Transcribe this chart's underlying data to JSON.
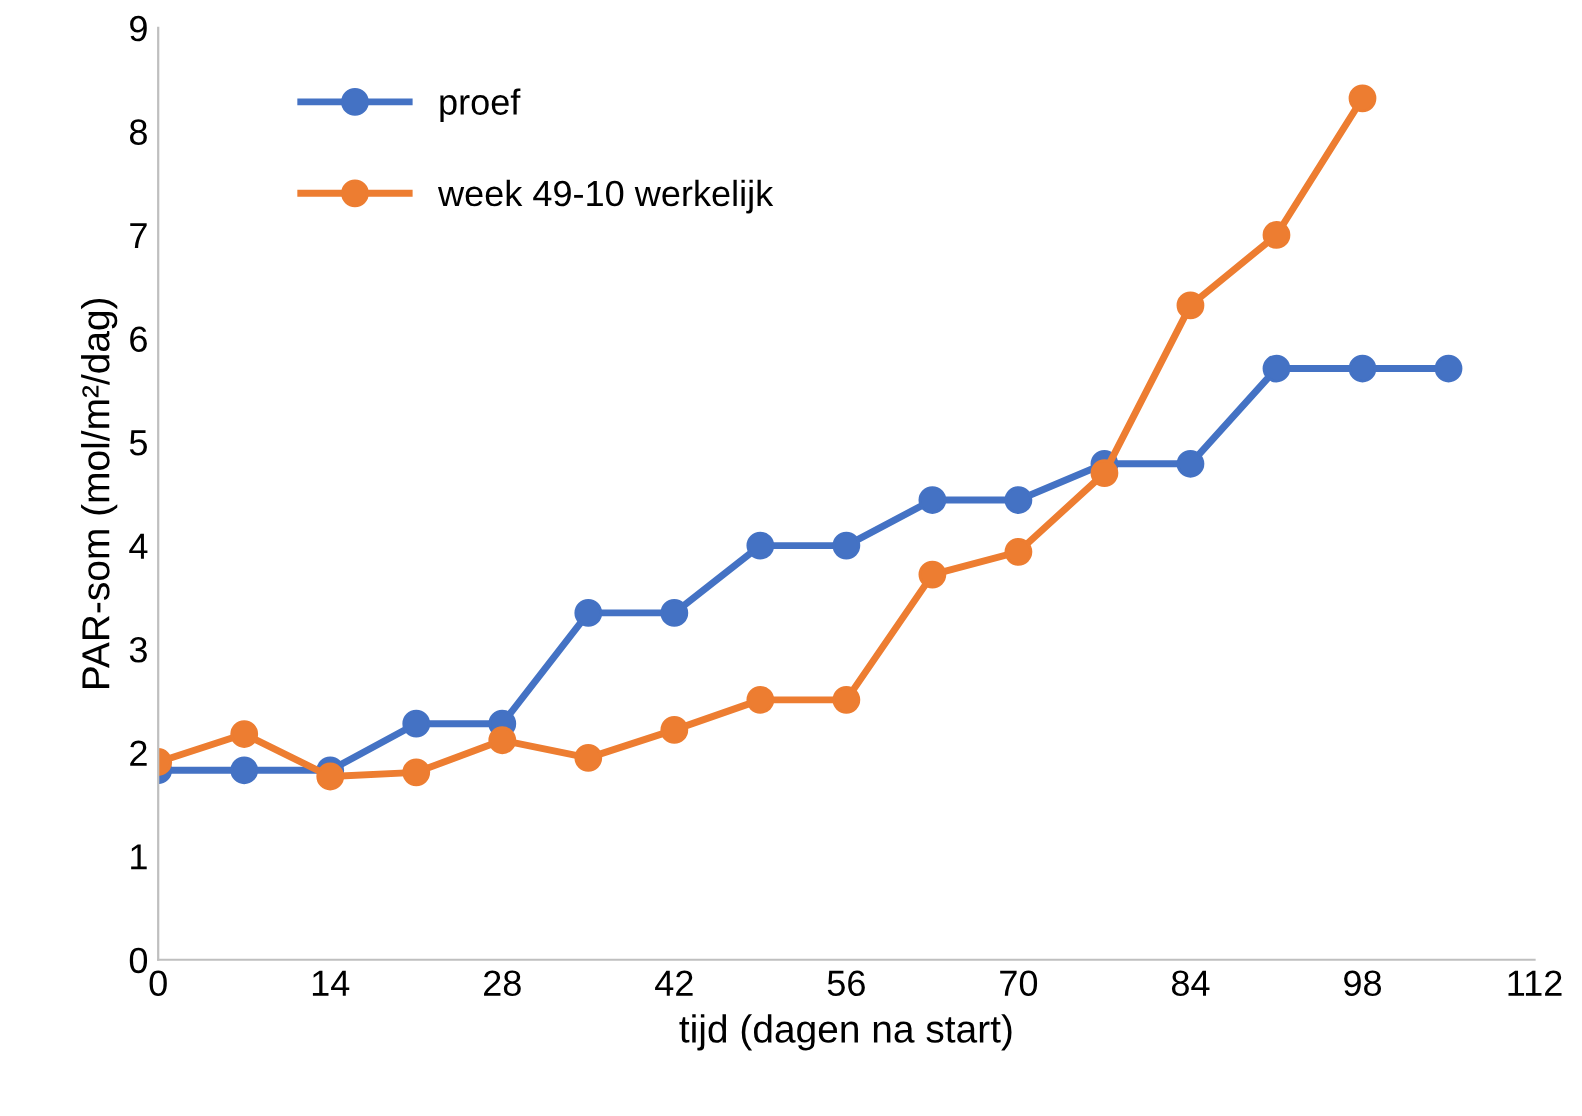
{
  "chart_data": {
    "type": "line",
    "xlabel": "tijd (dagen na start)",
    "ylabel": "PAR-som (mol/m²/dag)",
    "xlim": [
      0,
      112
    ],
    "xticks": [
      0,
      14,
      28,
      42,
      56,
      70,
      84,
      98,
      112
    ],
    "ylim": [
      0,
      9
    ],
    "yticks": [
      0,
      1,
      2,
      3,
      4,
      5,
      6,
      7,
      8,
      9
    ],
    "grid": false,
    "legend": "top left",
    "marker": "circle",
    "line_style": "solid",
    "series": [
      {
        "name": "proef",
        "color": "#4472c4",
        "x": [
          0,
          7,
          14,
          21,
          28,
          35,
          42,
          49,
          56,
          63,
          70,
          77,
          84,
          91,
          98,
          105
        ],
        "values": [
          1.83,
          1.83,
          1.83,
          2.28,
          2.28,
          3.35,
          3.35,
          4.0,
          4.0,
          4.44,
          4.44,
          4.79,
          4.79,
          5.71,
          5.71,
          5.71
        ]
      },
      {
        "name": "week 49-10 werkelijk",
        "color": "#ed7d31",
        "x": [
          0,
          7,
          14,
          21,
          28,
          35,
          42,
          49,
          56,
          63,
          70,
          77,
          84,
          91,
          98
        ],
        "values": [
          1.91,
          2.18,
          1.77,
          1.81,
          2.12,
          1.95,
          2.22,
          2.51,
          2.51,
          3.72,
          3.94,
          4.7,
          6.32,
          7.0,
          8.32
        ]
      }
    ]
  }
}
